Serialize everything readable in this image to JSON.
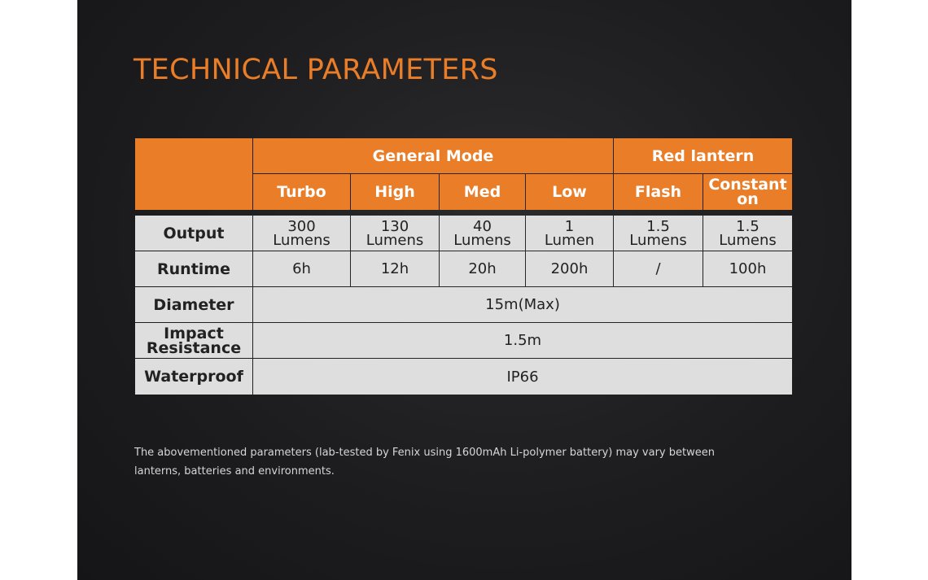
{
  "title": "TECHNICAL PARAMETERS",
  "table": {
    "groups": [
      "General Mode",
      "Red lantern"
    ],
    "modes": [
      "Turbo",
      "High",
      "Med",
      "Low",
      "Flash",
      "Constant\non"
    ],
    "rows": {
      "output": {
        "label": "Output",
        "values": [
          "300\nLumens",
          "130\nLumens",
          "40\nLumens",
          "1\nLumen",
          "1.5\nLumens",
          "1.5\nLumens"
        ]
      },
      "runtime": {
        "label": "Runtime",
        "values": [
          "6h",
          "12h",
          "20h",
          "200h",
          "/",
          "100h"
        ]
      },
      "diameter": {
        "label": "Diameter",
        "value": "15m(Max)"
      },
      "impact": {
        "label": "Impact\nResistance",
        "value": "1.5m"
      },
      "waterproof": {
        "label": "Waterproof",
        "value": "IP66"
      }
    }
  },
  "footnote": "The abovementioned parameters (lab-tested by Fenix using 1600mAh Li-polymer battery) may vary between lanterns, batteries and environments.",
  "colors": {
    "accent": "#ea7d28",
    "cell_bg": "#dedede",
    "panel_bg": "#1d1d1f"
  }
}
